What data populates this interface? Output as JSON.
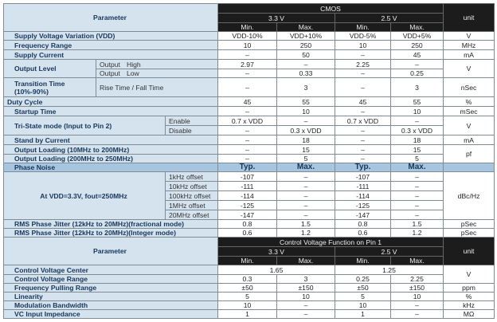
{
  "t1": {
    "param": "Parameter",
    "group": "CMOS",
    "v1": "3.3 V",
    "v2": "2.5 V",
    "unit": "unit",
    "min": "Min.",
    "max": "Max."
  },
  "r": [
    {
      "l": "Supply Voltage Variation (VDD)",
      "v": [
        "VDD-10%",
        "VDD+10%",
        "VDD-5%",
        "VDD+5%"
      ],
      "u": "V"
    },
    {
      "l": "Frequency Range",
      "v": [
        "10",
        "250",
        "10",
        "250"
      ],
      "u": "MHz"
    },
    {
      "l": "Supply Current",
      "v": [
        "–",
        "50",
        "–",
        "45"
      ],
      "u": "mA"
    },
    {
      "l": "Output Level",
      "s": "Output",
      "s2": "High",
      "v": [
        "2.97",
        "–",
        "2.25",
        "–"
      ],
      "u": "V"
    },
    {
      "s": "Output",
      "s2": "Low",
      "v": [
        "–",
        "0.33",
        "–",
        "0.25"
      ]
    },
    {
      "l": "Transition Time",
      "l2": "(10%-90%)",
      "s": "Rise Time / Fall Time",
      "v": [
        "–",
        "3",
        "–",
        "3"
      ],
      "u": "nSec"
    },
    {
      "l": "Duty Cycle",
      "v": [
        "45",
        "55",
        "45",
        "55"
      ],
      "u": "%"
    },
    {
      "l": "Startup Time",
      "v": [
        "–",
        "10",
        "–",
        "10"
      ],
      "u": "mSec"
    },
    {
      "l": "Tri-State mode (Input to Pin 2)",
      "s": "Enable",
      "v": [
        "0.7 x VDD",
        "–",
        "0.7 x VDD",
        "–"
      ],
      "u": "V"
    },
    {
      "s": "Disable",
      "v": [
        "–",
        "0.3 x VDD",
        "–",
        "0.3 x VDD"
      ]
    },
    {
      "l": "Stand by Current",
      "v": [
        "–",
        "18",
        "–",
        "18"
      ],
      "u": "mA"
    },
    {
      "l": "Output Loading (10MHz to 200MHz)",
      "v": [
        "–",
        "15",
        "–",
        "15"
      ],
      "u": "pf"
    },
    {
      "l": "Output Loading (200MHz to 250MHz)",
      "v": [
        "–",
        "5",
        "–",
        "5"
      ]
    },
    {
      "l": "Phase Noise",
      "v": [
        "Typ.",
        "Max.",
        "Typ.",
        "Max."
      ]
    },
    {
      "l": "At VDD=3.3V, fout=250MHz",
      "s": "1kHz offset",
      "v": [
        "-107",
        "–",
        "-107",
        "–"
      ],
      "u": "dBc/Hz"
    },
    {
      "s": "10kHz offset",
      "v": [
        "-111",
        "–",
        "-111",
        "–"
      ]
    },
    {
      "s": "100kHz offset",
      "v": [
        "-114",
        "–",
        "-114",
        "–"
      ]
    },
    {
      "s": "1MHz offset",
      "v": [
        "-125",
        "–",
        "-125",
        "–"
      ]
    },
    {
      "s": "20MHz offset",
      "v": [
        "-147",
        "–",
        "-147",
        "–"
      ]
    },
    {
      "l": "RMS Phase Jitter (12kHz to 20MHz)(fractional mode)",
      "v": [
        "0.8",
        "1.5",
        "0.8",
        "1.5"
      ],
      "u": "pSec"
    },
    {
      "l": "RMS Phase Jitter (12kHz to 20MHz)(Integer mode)",
      "v": [
        "0.6",
        "1.2",
        "0.6",
        "1.2"
      ],
      "u": "pSec"
    }
  ],
  "t2": {
    "param": "Parameter",
    "group": "Control Voltage Function on Pin 1",
    "v1": "3.3 V",
    "v2": "2.5 V",
    "unit": "unit",
    "min": "Min.",
    "max": "Max."
  },
  "r2": [
    {
      "l": "Control Voltage Center",
      "v": [
        "1.65",
        "1.25"
      ],
      "u": "V"
    },
    {
      "l": "Control Voltage Range",
      "v": [
        "0.3",
        "3",
        "0.25",
        "2.25"
      ]
    },
    {
      "l": "Frequency Pulling Range",
      "v": [
        "±50",
        "±150",
        "±50",
        "±150"
      ],
      "u": "ppm"
    },
    {
      "l": "Linearity",
      "v": [
        "5",
        "10",
        "5",
        "10"
      ],
      "u": "%"
    },
    {
      "l": "Modulation Bandwidth",
      "v": [
        "10",
        "–",
        "10",
        "–"
      ],
      "u": "kHz"
    },
    {
      "l": "VC Input Impedance",
      "v": [
        "1",
        "–",
        "1",
        "–"
      ],
      "u": "MΩ"
    }
  ]
}
